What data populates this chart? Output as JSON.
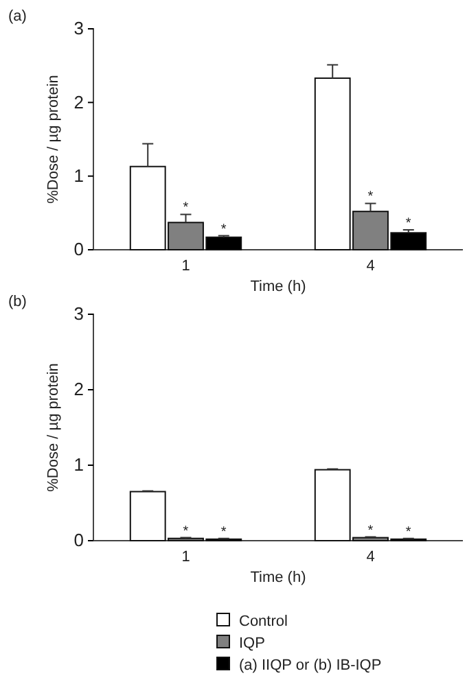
{
  "chart_data": [
    {
      "type": "bar",
      "title": "(a)",
      "xlabel": "Time (h)",
      "ylabel": "%Dose / µg protein",
      "categories": [
        "1",
        "4"
      ],
      "ylim": [
        0,
        3
      ],
      "yticks": [
        0,
        1,
        2,
        3
      ],
      "grid": false,
      "legend": false,
      "series": [
        {
          "color": "#ffffff",
          "values": [
            1.13,
            2.33
          ],
          "errors": [
            0.31,
            0.18
          ]
        },
        {
          "color": "#808080",
          "values": [
            0.37,
            0.52
          ],
          "errors": [
            0.11,
            0.11
          ]
        },
        {
          "color": "#000000",
          "values": [
            0.17,
            0.23
          ],
          "errors": [
            0.02,
            0.04
          ]
        }
      ],
      "annotations": [
        "*",
        "*",
        "*",
        "*"
      ]
    },
    {
      "type": "bar",
      "title": "(b)",
      "xlabel": "Time (h)",
      "ylabel": "%Dose / µg protein",
      "categories": [
        "1",
        "4"
      ],
      "ylim": [
        0,
        3
      ],
      "yticks": [
        0,
        1,
        2,
        3
      ],
      "grid": false,
      "legend": "bottom",
      "series": [
        {
          "name": "Control",
          "color": "#ffffff",
          "values": [
            0.65,
            0.94
          ],
          "errors": [
            0.01,
            0.01
          ]
        },
        {
          "name": "IQP",
          "color": "#808080",
          "values": [
            0.03,
            0.04
          ],
          "errors": [
            0.01,
            0.01
          ]
        },
        {
          "name": "(a) IIQP or (b) IB-IQP",
          "color": "#000000",
          "values": [
            0.02,
            0.02
          ],
          "errors": [
            0.01,
            0.01
          ]
        }
      ],
      "annotations": [
        "*",
        "*",
        "*",
        "*"
      ]
    }
  ]
}
